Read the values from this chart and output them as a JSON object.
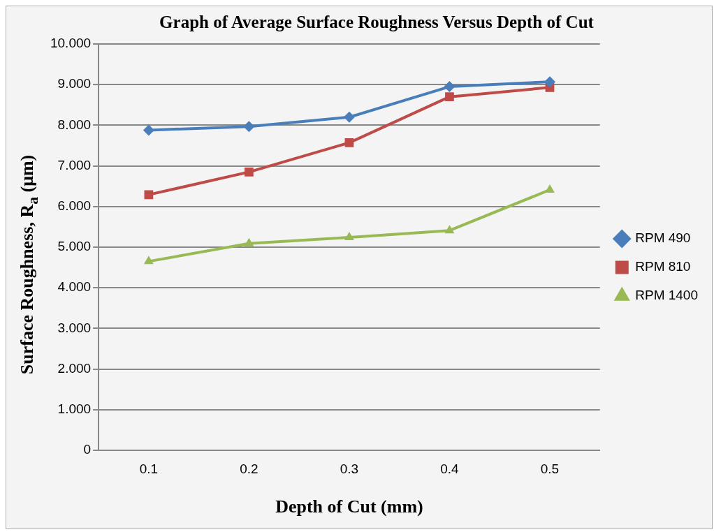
{
  "chart_data": {
    "type": "line",
    "title": "Graph of Average Surface Roughness Versus Depth of Cut",
    "xlabel": "Depth of Cut (mm)",
    "ylabel": "Surface Roughness, R$_{a}$ (μm)",
    "categories": [
      "0.1",
      "0.2",
      "0.3",
      "0.4",
      "0.5"
    ],
    "series": [
      {
        "name": "RPM 490",
        "color": "#4a7ebb",
        "marker": "diamond",
        "values": [
          7.88,
          7.97,
          8.2,
          8.95,
          9.07
        ]
      },
      {
        "name": "RPM 810",
        "color": "#be4b48",
        "marker": "square",
        "values": [
          6.29,
          6.85,
          7.57,
          8.7,
          8.93
        ]
      },
      {
        "name": "RPM 1400",
        "color": "#98b954",
        "marker": "triangle",
        "values": [
          4.65,
          5.09,
          5.24,
          5.41,
          6.41
        ]
      }
    ],
    "ylim": [
      0,
      10
    ],
    "yticks": [
      0,
      {
        "value": 1,
        "label": "1.000"
      },
      {
        "value": 2,
        "label": "2.000"
      },
      {
        "value": 3,
        "label": "3.000"
      },
      {
        "value": 4,
        "label": "4.000"
      },
      {
        "value": 5,
        "label": "5.000"
      },
      {
        "value": 6,
        "label": "6.000"
      },
      {
        "value": 7,
        "label": "7.000"
      },
      {
        "value": 8,
        "label": "8.000"
      },
      {
        "value": 9,
        "label": "9.000"
      },
      {
        "value": 10,
        "label": "10.000"
      }
    ],
    "grid": "y",
    "legend": "right",
    "line_style": "solid"
  }
}
